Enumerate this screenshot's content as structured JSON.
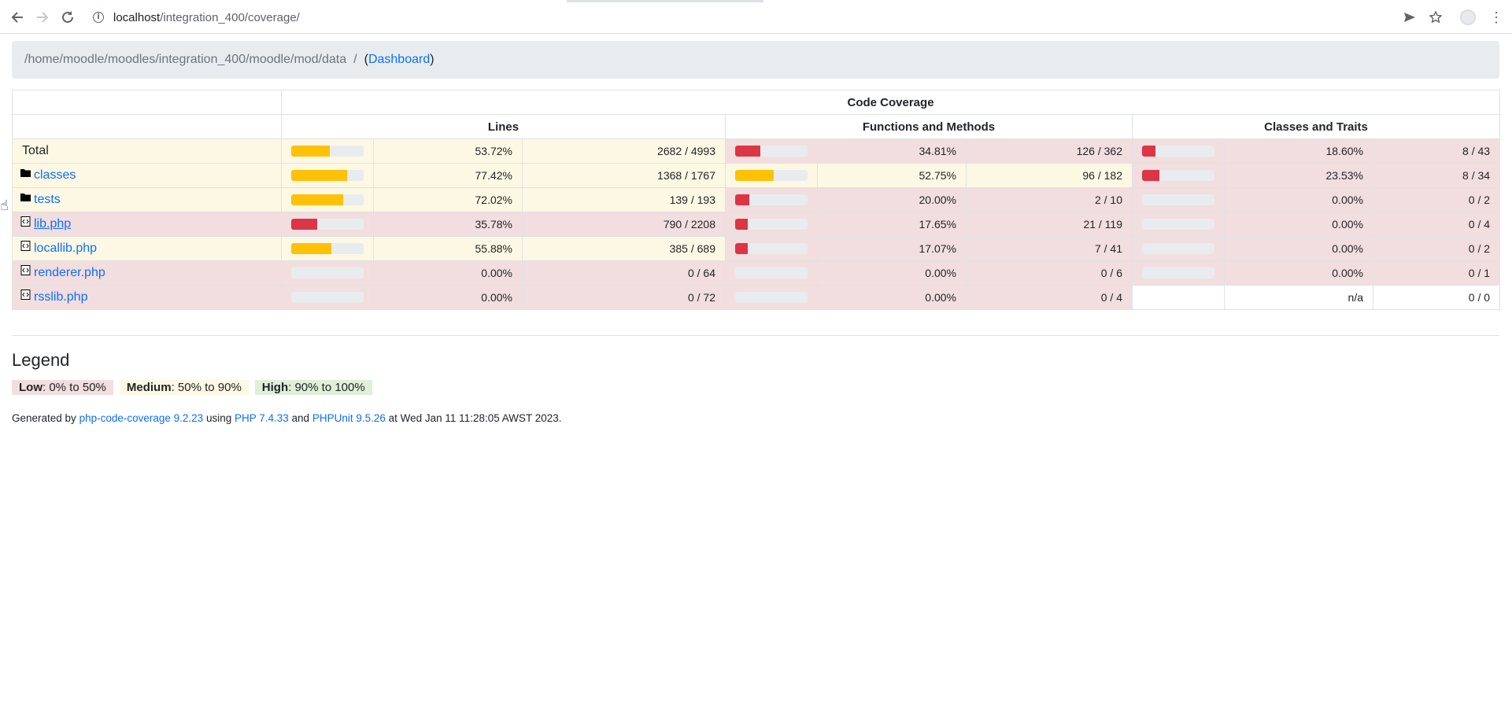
{
  "browser": {
    "url_host": "localhost",
    "url_path": "/integration_400/coverage/"
  },
  "breadcrumb": {
    "path": "/home/moodle/moodles/integration_400/moodle/mod/data",
    "separator": "/",
    "open_paren": "(",
    "dashboard_label": "Dashboard",
    "close_paren": ")"
  },
  "table": {
    "header_main": "Code Coverage",
    "header_lines": "Lines",
    "header_functions": "Functions and Methods",
    "header_classes": "Classes and Traits",
    "rows": [
      {
        "name": "Total",
        "kind": "total",
        "lines_pct": "53.72%",
        "lines_frac": "2682 / 4993",
        "lines_level": "med",
        "lines_value": 53.72,
        "func_pct": "34.81%",
        "func_frac": "126 / 362",
        "func_level": "low",
        "func_value": 34.81,
        "cls_pct": "18.60%",
        "cls_frac": "8 / 43",
        "cls_level": "low",
        "cls_value": 18.6
      },
      {
        "name": "classes",
        "kind": "dir",
        "lines_pct": "77.42%",
        "lines_frac": "1368 / 1767",
        "lines_level": "med",
        "lines_value": 77.42,
        "func_pct": "52.75%",
        "func_frac": "96 / 182",
        "func_level": "med",
        "func_value": 52.75,
        "cls_pct": "23.53%",
        "cls_frac": "8 / 34",
        "cls_level": "low",
        "cls_value": 23.53
      },
      {
        "name": "tests",
        "kind": "dir",
        "lines_pct": "72.02%",
        "lines_frac": "139 / 193",
        "lines_level": "med",
        "lines_value": 72.02,
        "func_pct": "20.00%",
        "func_frac": "2 / 10",
        "func_level": "low",
        "func_value": 20.0,
        "cls_pct": "0.00%",
        "cls_frac": "0 / 2",
        "cls_level": "low",
        "cls_value": 0
      },
      {
        "name": "lib.php",
        "kind": "file",
        "lines_pct": "35.78%",
        "lines_frac": "790 / 2208",
        "lines_level": "low",
        "lines_value": 35.78,
        "func_pct": "17.65%",
        "func_frac": "21 / 119",
        "func_level": "low",
        "func_value": 17.65,
        "cls_pct": "0.00%",
        "cls_frac": "0 / 4",
        "cls_level": "low",
        "cls_value": 0
      },
      {
        "name": "locallib.php",
        "kind": "file",
        "lines_pct": "55.88%",
        "lines_frac": "385 / 689",
        "lines_level": "med",
        "lines_value": 55.88,
        "func_pct": "17.07%",
        "func_frac": "7 / 41",
        "func_level": "low",
        "func_value": 17.07,
        "cls_pct": "0.00%",
        "cls_frac": "0 / 2",
        "cls_level": "low",
        "cls_value": 0
      },
      {
        "name": "renderer.php",
        "kind": "file",
        "lines_pct": "0.00%",
        "lines_frac": "0 / 64",
        "lines_level": "low",
        "lines_value": 0,
        "func_pct": "0.00%",
        "func_frac": "0 / 6",
        "func_level": "low",
        "func_value": 0,
        "cls_pct": "0.00%",
        "cls_frac": "0 / 1",
        "cls_level": "low",
        "cls_value": 0
      },
      {
        "name": "rsslib.php",
        "kind": "file",
        "lines_pct": "0.00%",
        "lines_frac": "0 / 72",
        "lines_level": "low",
        "lines_value": 0,
        "func_pct": "0.00%",
        "func_frac": "0 / 4",
        "func_level": "low",
        "func_value": 0,
        "cls_pct": "n/a",
        "cls_frac": "0 / 0",
        "cls_level": "none",
        "cls_value": null
      }
    ]
  },
  "legend": {
    "title": "Legend",
    "low_label": "Low",
    "low_range": ": 0% to 50%",
    "medium_label": "Medium",
    "medium_range": ": 50% to 90%",
    "high_label": "High",
    "high_range": ": 90% to 100%"
  },
  "footer": {
    "generated_by": "Generated by ",
    "tool_link": "php-code-coverage 9.2.23",
    "using": " using ",
    "php_link": "PHP 7.4.33",
    "and": " and ",
    "phpunit_link": "PHPUnit 9.5.26",
    "date_text": " at Wed Jan 11 11:28:05 AWST 2023."
  },
  "colors": {
    "low_bg": "#f2dede",
    "medium_bg": "#fcf8e3",
    "high_bg": "#dff0d8",
    "bar_low": "#dc3545",
    "bar_medium": "#ffc107",
    "bar_high": "#28a745",
    "link": "#0d6efd"
  }
}
